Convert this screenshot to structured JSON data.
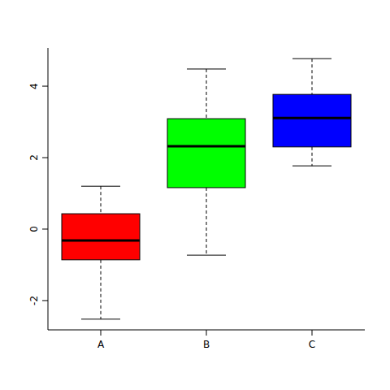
{
  "chart_data": {
    "type": "box",
    "categories": [
      "A",
      "B",
      "C"
    ],
    "values": [
      {
        "min": -2.52,
        "q1": -0.86,
        "median": -0.32,
        "q3": 0.43,
        "max": 1.2
      },
      {
        "min": -0.73,
        "q1": 1.16,
        "median": 2.32,
        "q3": 3.09,
        "max": 4.48
      },
      {
        "min": 1.77,
        "q1": 2.3,
        "median": 3.11,
        "q3": 3.77,
        "max": 4.77
      }
    ],
    "colors": [
      "#ff0000",
      "#00ff00",
      "#0000ff"
    ],
    "ylim": [
      -2.82,
      5.07
    ],
    "yticks": [
      -2,
      0,
      2,
      4
    ]
  }
}
